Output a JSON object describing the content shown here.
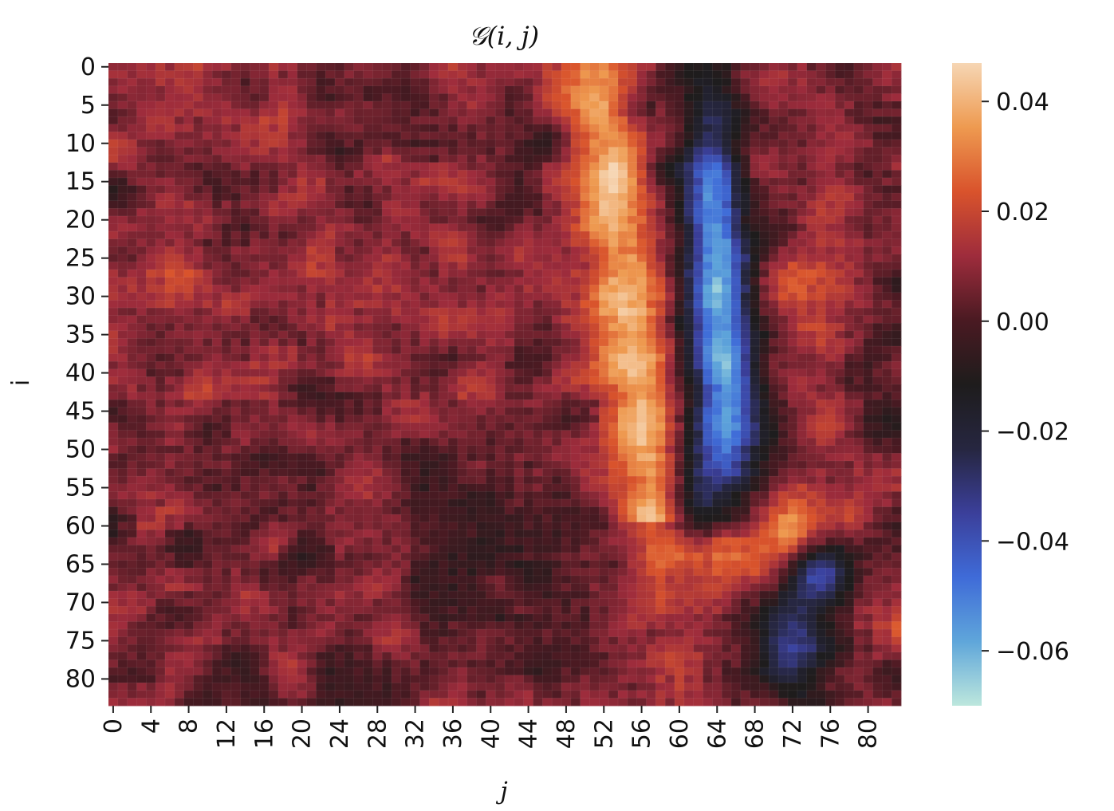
{
  "chart_data": {
    "type": "heatmap",
    "title": "𝒢(i, j)",
    "xlabel": "j",
    "ylabel": "i",
    "rows": 84,
    "cols": 84,
    "x_tick_labels": [
      "0",
      "4",
      "8",
      "12",
      "16",
      "20",
      "24",
      "28",
      "32",
      "36",
      "40",
      "44",
      "48",
      "52",
      "56",
      "60",
      "64",
      "68",
      "72",
      "76",
      "80"
    ],
    "y_tick_labels": [
      "0",
      "5",
      "10",
      "15",
      "20",
      "25",
      "30",
      "35",
      "40",
      "45",
      "50",
      "55",
      "60",
      "65",
      "70",
      "75",
      "80"
    ],
    "colorbar": {
      "vmin": -0.07,
      "vmax": 0.047,
      "tick_values": [
        0.04,
        0.02,
        0.0,
        -0.02,
        -0.04,
        -0.06
      ],
      "tick_labels": [
        "0.04",
        "0.02",
        "0.00",
        "−0.02",
        "−0.04",
        "−0.06"
      ],
      "colormap": "icefire",
      "colormap_stops": [
        "#bde7dd",
        "#5fa6da",
        "#3f6bd8",
        "#3b3f9a",
        "#262640",
        "#1e1c1c",
        "#4a1a22",
        "#9e2c3c",
        "#d9532c",
        "#ee9a50",
        "#f6d6b4"
      ]
    },
    "features": [
      {
        "region": "warm ridge",
        "value": 0.04,
        "cols": [
          49,
          59
        ],
        "rows": [
          0,
          58
        ]
      },
      {
        "region": "cold band",
        "value": -0.06,
        "cols": [
          60,
          68
        ],
        "rows": [
          0,
          62
        ]
      },
      {
        "region": "warm patch",
        "value": 0.03,
        "cols": [
          61,
          75
        ],
        "rows": [
          55,
          68
        ]
      },
      {
        "region": "cold patch",
        "value": -0.04,
        "cols": [
          70,
          79
        ],
        "rows": [
          62,
          84
        ]
      },
      {
        "region": "background",
        "value": 0.007,
        "cols": [
          0,
          84
        ],
        "rows": [
          0,
          84
        ]
      }
    ]
  }
}
